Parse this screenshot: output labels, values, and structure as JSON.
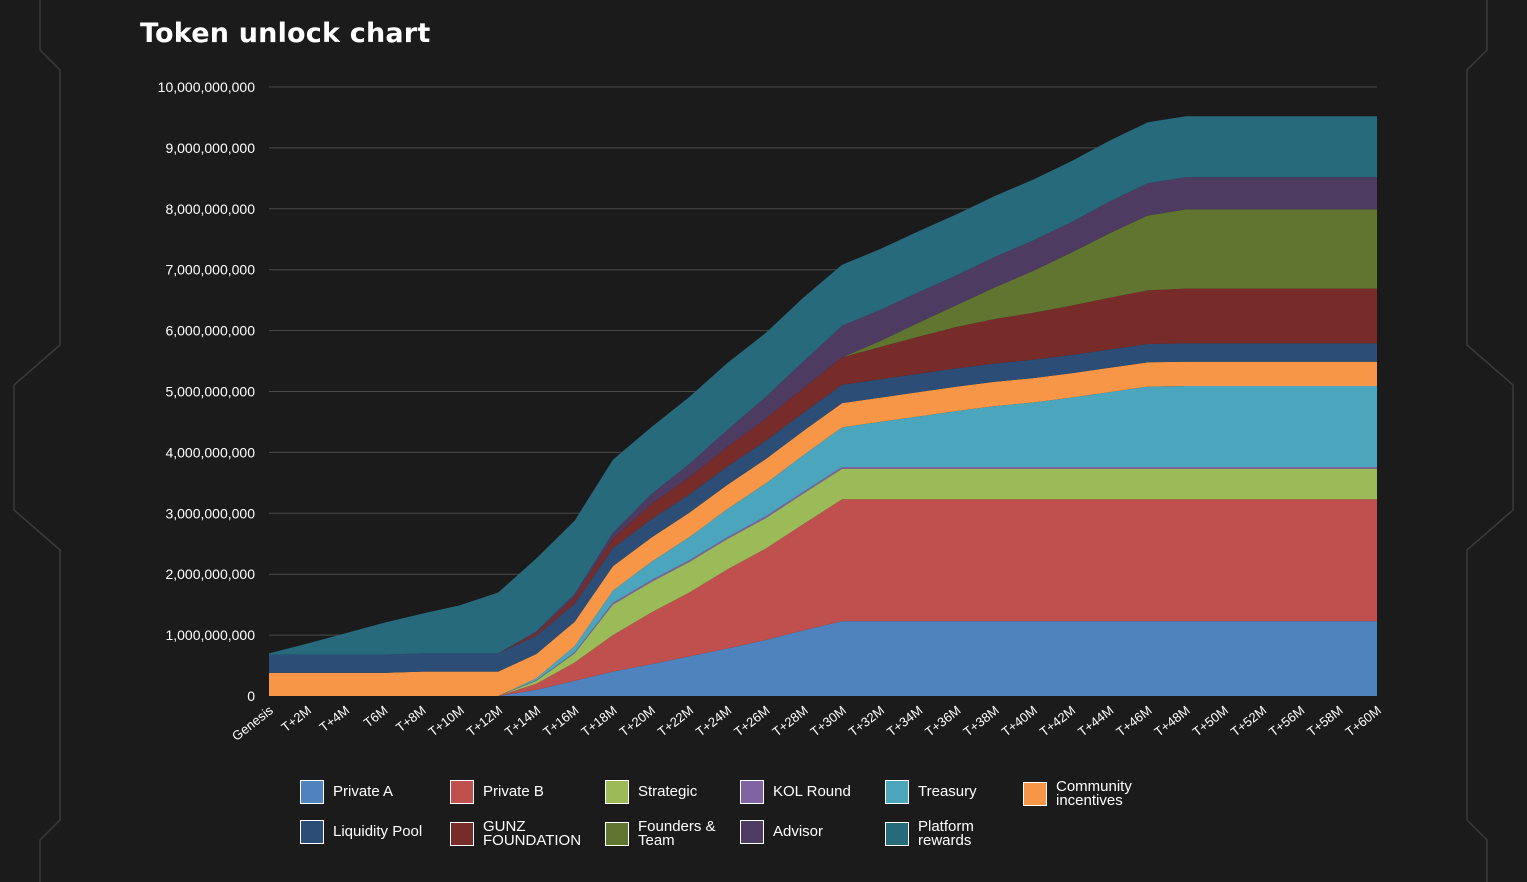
{
  "page": {
    "title": "Token unlock chart"
  },
  "colors": {
    "background": "#1b1b1b",
    "grid": "#4a4a4a",
    "text": "#ffffff"
  },
  "chart_data": {
    "type": "area",
    "stacked": true,
    "title": "Token unlock chart",
    "xlabel": "",
    "ylabel": "",
    "ylim": [
      0,
      10000000000
    ],
    "yticks": [
      0,
      1000000000,
      2000000000,
      3000000000,
      4000000000,
      5000000000,
      6000000000,
      7000000000,
      8000000000,
      9000000000,
      10000000000
    ],
    "ytick_labels": [
      "0",
      "1,000,000,000",
      "2,000,000,000",
      "3,000,000,000",
      "4,000,000,000",
      "5,000,000,000",
      "6,000,000,000",
      "7,000,000,000",
      "8,000,000,000",
      "9,000,000,000",
      "10,000,000,000"
    ],
    "grid": true,
    "legend": "bottom",
    "categories": [
      "Genesis",
      "T+2M",
      "T+4M",
      "T6M",
      "T+8M",
      "T+10M",
      "T+12M",
      "T+14M",
      "T+16M",
      "T+18M",
      "T+20M",
      "T+22M",
      "T+24M",
      "T+26M",
      "T+28M",
      "T+30M",
      "T+32M",
      "T+34M",
      "T+36M",
      "T+38M",
      "T+40M",
      "T+42M",
      "T+44M",
      "T+46M",
      "T+48M",
      "T+50M",
      "T+52M",
      "T+56M",
      "T+58M",
      "T+60M"
    ],
    "series": [
      {
        "name": "Private A",
        "color": "#4f83bd",
        "values": [
          0,
          0,
          0,
          0,
          0,
          0,
          0,
          100000000,
          250000000,
          400000000,
          520000000,
          650000000,
          780000000,
          920000000,
          1080000000,
          1230000000,
          1230000000,
          1230000000,
          1230000000,
          1230000000,
          1230000000,
          1230000000,
          1230000000,
          1230000000,
          1230000000,
          1230000000,
          1230000000,
          1230000000,
          1230000000,
          1230000000
        ]
      },
      {
        "name": "Private B",
        "color": "#c0504d",
        "values": [
          0,
          0,
          0,
          0,
          0,
          0,
          0,
          100000000,
          300000000,
          600000000,
          850000000,
          1050000000,
          1300000000,
          1500000000,
          1750000000,
          2000000000,
          2000000000,
          2000000000,
          2000000000,
          2000000000,
          2000000000,
          2000000000,
          2000000000,
          2000000000,
          2000000000,
          2000000000,
          2000000000,
          2000000000,
          2000000000,
          2000000000
        ]
      },
      {
        "name": "Strategic",
        "color": "#9bbb59",
        "values": [
          0,
          0,
          0,
          0,
          0,
          0,
          0,
          50000000,
          150000000,
          500000000,
          500000000,
          500000000,
          500000000,
          500000000,
          500000000,
          500000000,
          500000000,
          500000000,
          500000000,
          500000000,
          500000000,
          500000000,
          500000000,
          500000000,
          500000000,
          500000000,
          500000000,
          500000000,
          500000000,
          500000000
        ]
      },
      {
        "name": "KOL Round",
        "color": "#8064a2",
        "values": [
          0,
          0,
          0,
          0,
          0,
          0,
          0,
          10000000,
          20000000,
          30000000,
          30000000,
          30000000,
          30000000,
          30000000,
          30000000,
          30000000,
          30000000,
          30000000,
          30000000,
          30000000,
          30000000,
          30000000,
          30000000,
          30000000,
          30000000,
          30000000,
          30000000,
          30000000,
          30000000,
          30000000
        ]
      },
      {
        "name": "Treasury",
        "color": "#4aa5bd",
        "values": [
          0,
          0,
          0,
          0,
          0,
          0,
          0,
          30000000,
          100000000,
          200000000,
          300000000,
          380000000,
          460000000,
          540000000,
          600000000,
          650000000,
          740000000,
          830000000,
          920000000,
          1000000000,
          1060000000,
          1140000000,
          1230000000,
          1320000000,
          1330000000,
          1330000000,
          1330000000,
          1330000000,
          1330000000,
          1330000000
        ]
      },
      {
        "name": "Community incentives",
        "color": "#f79646",
        "values": [
          380000000,
          380000000,
          380000000,
          380000000,
          400000000,
          400000000,
          400000000,
          400000000,
          400000000,
          400000000,
          400000000,
          400000000,
          400000000,
          400000000,
          400000000,
          400000000,
          400000000,
          400000000,
          400000000,
          400000000,
          400000000,
          400000000,
          400000000,
          400000000,
          400000000,
          400000000,
          400000000,
          400000000,
          400000000,
          400000000
        ]
      },
      {
        "name": "Liquidity Pool",
        "color": "#2c4d75",
        "values": [
          300000000,
          300000000,
          300000000,
          300000000,
          300000000,
          300000000,
          300000000,
          300000000,
          300000000,
          300000000,
          300000000,
          300000000,
          300000000,
          300000000,
          300000000,
          300000000,
          300000000,
          300000000,
          300000000,
          300000000,
          300000000,
          300000000,
          300000000,
          300000000,
          300000000,
          300000000,
          300000000,
          300000000,
          300000000,
          300000000
        ]
      },
      {
        "name": "GUNZ FOUNDATION",
        "color": "#772c2a",
        "values": [
          0,
          0,
          0,
          0,
          0,
          0,
          0,
          50000000,
          100000000,
          150000000,
          250000000,
          280000000,
          320000000,
          360000000,
          400000000,
          450000000,
          530000000,
          610000000,
          680000000,
          730000000,
          770000000,
          810000000,
          850000000,
          880000000,
          900000000,
          900000000,
          900000000,
          900000000,
          900000000,
          900000000
        ]
      },
      {
        "name": "Founders & Team",
        "color": "#5f7530",
        "values": [
          0,
          0,
          0,
          0,
          0,
          0,
          0,
          0,
          0,
          0,
          0,
          0,
          0,
          0,
          0,
          0,
          100000000,
          230000000,
          360000000,
          520000000,
          690000000,
          870000000,
          1060000000,
          1230000000,
          1300000000,
          1300000000,
          1300000000,
          1300000000,
          1300000000,
          1300000000
        ]
      },
      {
        "name": "Advisor",
        "color": "#4d3b62",
        "values": [
          0,
          0,
          0,
          0,
          0,
          0,
          0,
          20000000,
          60000000,
          100000000,
          160000000,
          220000000,
          280000000,
          360000000,
          440000000,
          520000000,
          510000000,
          500000000,
          490000000,
          500000000,
          500000000,
          500000000,
          520000000,
          530000000,
          530000000,
          530000000,
          530000000,
          530000000,
          530000000,
          530000000
        ]
      },
      {
        "name": "Platform rewards",
        "color": "#276a7c",
        "values": [
          20000000,
          180000000,
          350000000,
          520000000,
          650000000,
          790000000,
          1000000000,
          1200000000,
          1200000000,
          1200000000,
          1100000000,
          1100000000,
          1100000000,
          1050000000,
          1050000000,
          1000000000,
          1000000000,
          1000000000,
          1000000000,
          1000000000,
          1000000000,
          1000000000,
          1000000000,
          1000000000,
          1000000000,
          1000000000,
          1000000000,
          1000000000,
          1000000000,
          1000000000
        ]
      }
    ]
  }
}
